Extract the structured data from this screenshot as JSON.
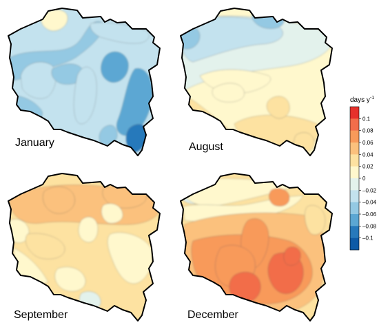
{
  "panels": [
    {
      "label": "January",
      "base_level": -0.03,
      "blobs": [
        {
          "level": -0.05
        },
        {
          "level": -0.02
        },
        {
          "level": -0.05
        },
        {
          "level": -0.06
        },
        {
          "level": -0.02
        },
        {
          "level": -0.02
        },
        {
          "level": -0.07
        },
        {
          "level": -0.09
        },
        {
          "level": 0.01
        },
        {
          "level": -0.05
        },
        {
          "level": -0.05
        }
      ]
    },
    {
      "label": "August",
      "base_level": 0.025,
      "blobs": [
        {
          "level": -0.01
        },
        {
          "level": -0.03
        },
        {
          "level": -0.05
        },
        {
          "level": -0.04
        },
        {
          "level": 0.01
        },
        {
          "level": 0.035
        },
        {
          "level": 0.045
        },
        {
          "level": 0.04
        },
        {
          "level": 0.045
        },
        {
          "level": 0.015
        }
      ]
    },
    {
      "label": "September",
      "base_level": 0.035,
      "blobs": [
        {
          "level": 0.05
        },
        {
          "level": 0.06
        },
        {
          "level": 0.06
        },
        {
          "level": 0.015
        },
        {
          "level": 0.015
        },
        {
          "level": 0.01
        },
        {
          "level": 0.02
        },
        {
          "level": 0.015
        },
        {
          "level": -0.01
        },
        {
          "level": 0.045
        },
        {
          "level": 0.015
        }
      ]
    },
    {
      "label": "December",
      "base_level": 0.04,
      "blobs": [
        {
          "level": -0.01
        },
        {
          "level": 0.01
        },
        {
          "level": 0.02
        },
        {
          "level": 0.06
        },
        {
          "level": 0.08
        },
        {
          "level": 0.085
        },
        {
          "level": 0.085
        },
        {
          "level": 0.1
        },
        {
          "level": 0.1
        },
        {
          "level": 0.1
        },
        {
          "level": 0.07
        },
        {
          "level": 0.03
        }
      ]
    }
  ],
  "colorbar": {
    "title": "days y",
    "title_superscript": "-1",
    "ticks": [
      "0.1",
      "0.08",
      "0.06",
      "0.04",
      "0.02",
      "0",
      "–0.02",
      "–0.04",
      "–0.06",
      "–0.08",
      "–0.1"
    ],
    "colors": [
      "#e6312c",
      "#f26d4a",
      "#f89a5a",
      "#fbc17d",
      "#fde2a1",
      "#fff8cd",
      "#e3f2ec",
      "#c3e2ee",
      "#94c9e3",
      "#5ca7d3",
      "#2779bb",
      "#0e5aa6"
    ],
    "bounds": [
      0.11,
      0.09,
      0.07,
      0.05,
      0.03,
      0.01,
      -0.01,
      -0.03,
      -0.05,
      -0.07,
      -0.09
    ],
    "tick_values": [
      0.1,
      0.08,
      0.06,
      0.04,
      0.02,
      0.0,
      -0.02,
      -0.04,
      -0.06,
      -0.08,
      -0.1
    ]
  }
}
